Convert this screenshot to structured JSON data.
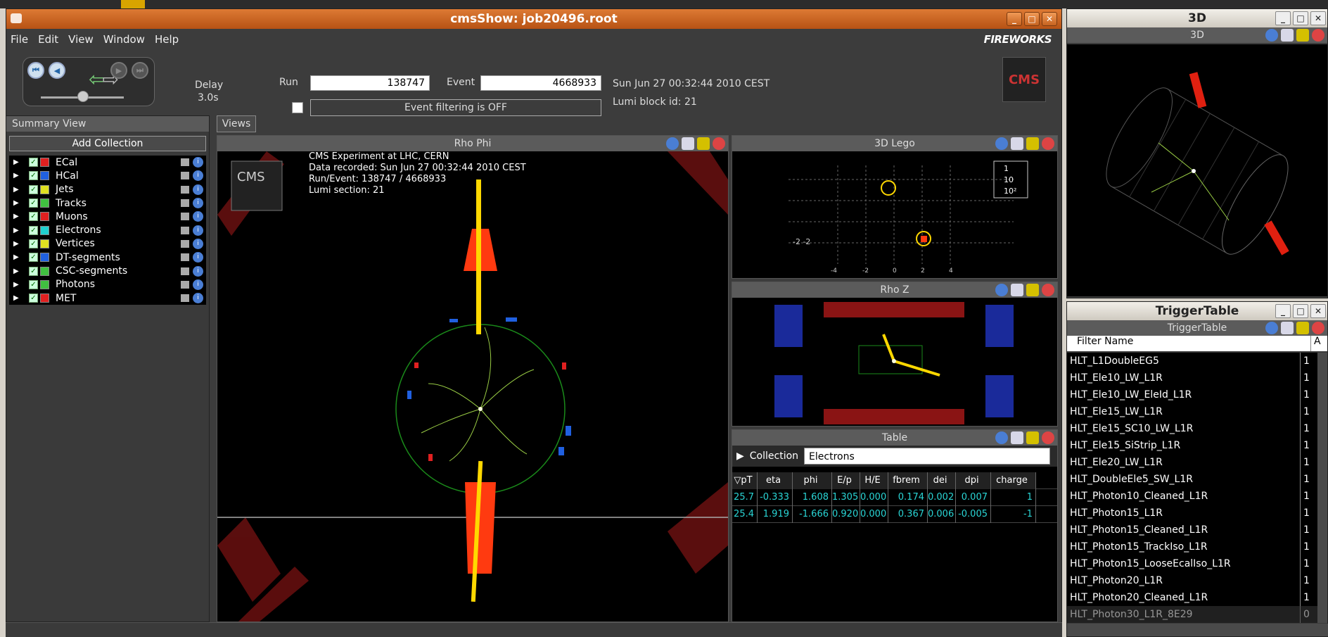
{
  "window": {
    "title": "cmsShow: job20496.root"
  },
  "menu": [
    "File",
    "Edit",
    "View",
    "Window",
    "Help"
  ],
  "brand": "FIREWORKS",
  "toolbar": {
    "delay_label": "Delay",
    "delay_value": "3.0s",
    "run_label": "Run",
    "run_value": "138747",
    "event_label": "Event",
    "event_value": "4668933",
    "datetime": "Sun Jun 27 00:32:44 2010 CEST",
    "lumi": "Lumi block id: 21",
    "filter_status": "Event filtering is OFF"
  },
  "summary": {
    "title": "Summary View",
    "add_button": "Add Collection",
    "collections": [
      {
        "name": "ECal",
        "color": "#e02020"
      },
      {
        "name": "HCal",
        "color": "#2060e0"
      },
      {
        "name": "Jets",
        "color": "#e0e020"
      },
      {
        "name": "Tracks",
        "color": "#40c040"
      },
      {
        "name": "Muons",
        "color": "#e02020"
      },
      {
        "name": "Electrons",
        "color": "#20d0d0"
      },
      {
        "name": "Vertices",
        "color": "#e0e020"
      },
      {
        "name": "DT-segments",
        "color": "#2060e0"
      },
      {
        "name": "CSC-segments",
        "color": "#40c040"
      },
      {
        "name": "Photons",
        "color": "#40c040"
      },
      {
        "name": "MET",
        "color": "#e02020"
      }
    ]
  },
  "views_tab": "Views",
  "rho_phi": {
    "title": "Rho Phi",
    "info_lines": [
      "CMS Experiment at LHC, CERN",
      "Data recorded: Sun Jun 27 00:32:44 2010 CEST",
      "Run/Event: 138747 / 4668933",
      "Lumi section: 21"
    ]
  },
  "lego": {
    "title": "3D Lego",
    "legend": [
      "1",
      "10",
      "10²"
    ]
  },
  "rhoz": {
    "title": "Rho Z"
  },
  "table": {
    "title": "Table",
    "collection_label": "Collection",
    "collection_value": "Electrons",
    "columns": [
      "▽pT",
      "eta",
      "phi",
      "E/p",
      "H/E",
      "fbrem",
      "dei",
      "dpi",
      "charge"
    ],
    "rows": [
      [
        "25.7",
        "-0.333",
        "1.608",
        "1.305",
        "0.000",
        "0.174",
        "0.002",
        "0.007",
        "1"
      ],
      [
        "25.4",
        "1.919",
        "-1.666",
        "0.920",
        "0.000",
        "0.367",
        "0.006",
        "-0.005",
        "-1"
      ]
    ]
  },
  "view3d": {
    "window_title": "3D",
    "panel_title": "3D"
  },
  "trigger": {
    "window_title": "TriggerTable",
    "panel_title": "TriggerTable",
    "filter_header": "Filter Name",
    "col2_header": "A",
    "rows": [
      [
        "HLT_L1DoubleEG5",
        "1"
      ],
      [
        "HLT_Ele10_LW_L1R",
        "1"
      ],
      [
        "HLT_Ele10_LW_EleId_L1R",
        "1"
      ],
      [
        "HLT_Ele15_LW_L1R",
        "1"
      ],
      [
        "HLT_Ele15_SC10_LW_L1R",
        "1"
      ],
      [
        "HLT_Ele15_SiStrip_L1R",
        "1"
      ],
      [
        "HLT_Ele20_LW_L1R",
        "1"
      ],
      [
        "HLT_DoubleEle5_SW_L1R",
        "1"
      ],
      [
        "HLT_Photon10_Cleaned_L1R",
        "1"
      ],
      [
        "HLT_Photon15_L1R",
        "1"
      ],
      [
        "HLT_Photon15_Cleaned_L1R",
        "1"
      ],
      [
        "HLT_Photon15_TrackIso_L1R",
        "1"
      ],
      [
        "HLT_Photon15_LooseEcalIso_L1R",
        "1"
      ],
      [
        "HLT_Photon20_L1R",
        "1"
      ],
      [
        "HLT_Photon20_Cleaned_L1R",
        "1"
      ],
      [
        "HLT_Photon30_L1R_8E29",
        "0"
      ]
    ]
  }
}
